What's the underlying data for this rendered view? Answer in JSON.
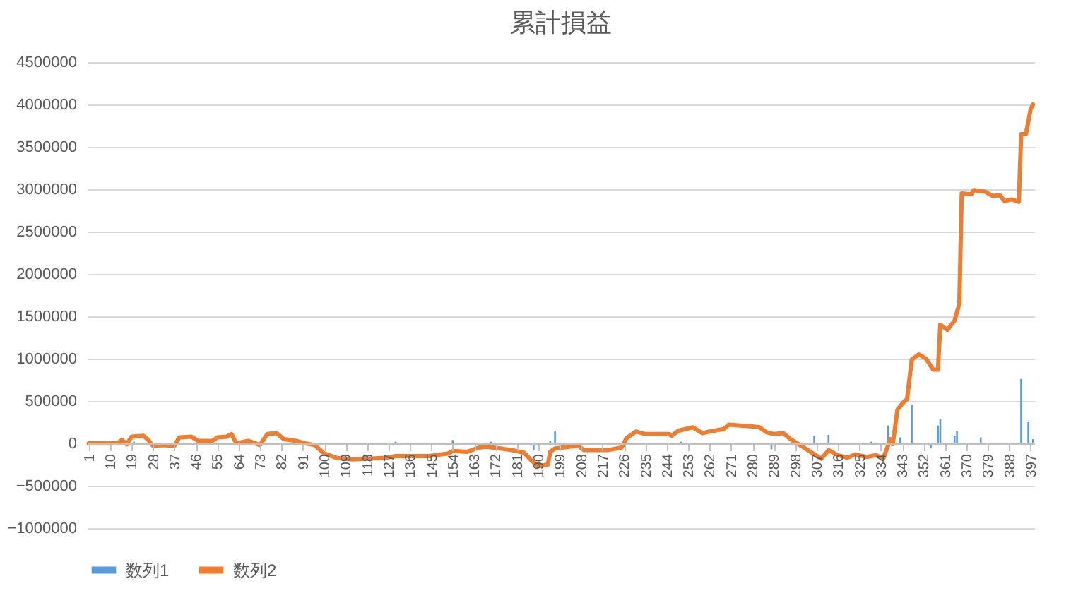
{
  "chart_data": {
    "type": "bar",
    "title": "累計損益",
    "xlim": [
      0.5,
      398.5
    ],
    "xticks": [
      1,
      10,
      19,
      28,
      37,
      46,
      55,
      64,
      73,
      82,
      91,
      100,
      109,
      118,
      127,
      136,
      145,
      154,
      163,
      172,
      181,
      190,
      199,
      208,
      217,
      226,
      235,
      244,
      253,
      262,
      271,
      280,
      289,
      298,
      307,
      316,
      325,
      334,
      343,
      352,
      361,
      370,
      379,
      388,
      397
    ],
    "ylim": [
      -1000000,
      4500000
    ],
    "yticks": [
      -1000000,
      -500000,
      0,
      500000,
      1000000,
      1500000,
      2000000,
      2500000,
      3000000,
      3500000,
      4000000,
      4500000
    ],
    "grid": "y",
    "legend": "bottom",
    "marker": "none",
    "series": [
      {
        "name": "数列1",
        "color": "#5b9bd5",
        "x": [
          20,
          45,
          70,
          110,
          130,
          154,
          170,
          188,
          195,
          197,
          230,
          250,
          288,
          306,
          312,
          330,
          337,
          342,
          347,
          355,
          358,
          359,
          365,
          366,
          376,
          393,
          396,
          398
        ],
        "values": [
          20000,
          null,
          20000,
          null,
          20000,
          40000,
          20000,
          -80000,
          30000,
          150000,
          null,
          20000,
          -70000,
          90000,
          100000,
          20000,
          210000,
          70000,
          450000,
          -60000,
          210000,
          290000,
          90000,
          150000,
          70000,
          760000,
          250000,
          50000
        ]
      },
      {
        "name": "数列2",
        "type": "line",
        "color": "#ed7d31",
        "x": [
          1,
          13,
          15,
          17,
          19,
          24,
          26,
          28,
          32,
          37,
          39,
          44,
          47,
          53,
          55,
          59,
          61,
          63,
          68,
          73,
          76,
          80,
          83,
          88,
          92,
          96,
          100,
          105,
          112,
          126,
          130,
          144,
          152,
          154,
          160,
          165,
          168,
          174,
          179,
          184,
          187,
          190,
          194,
          195,
          197,
          203,
          207,
          209,
          219,
          225,
          227,
          231,
          235,
          245,
          246,
          249,
          255,
          259,
          262,
          268,
          270,
          280,
          283,
          286,
          289,
          293,
          296,
          300,
          306,
          309,
          312,
          316,
          320,
          323,
          328,
          332,
          335,
          338,
          339,
          341,
          344,
          345,
          347,
          350,
          353,
          356,
          358,
          359,
          362,
          365,
          367,
          368,
          372,
          373,
          378,
          381,
          384,
          386,
          389,
          392,
          393,
          395,
          397,
          398
        ],
        "values": [
          0,
          0,
          40000,
          -10000,
          80000,
          90000,
          40000,
          -30000,
          -20000,
          -30000,
          70000,
          80000,
          30000,
          30000,
          70000,
          80000,
          110000,
          0,
          30000,
          -20000,
          110000,
          120000,
          50000,
          30000,
          0,
          -20000,
          -120000,
          -170000,
          -190000,
          -170000,
          -150000,
          -150000,
          -120000,
          -90000,
          -100000,
          -50000,
          -40000,
          -60000,
          -80000,
          -110000,
          -200000,
          -270000,
          -250000,
          -100000,
          -60000,
          -40000,
          -30000,
          -80000,
          -80000,
          -50000,
          60000,
          140000,
          110000,
          110000,
          90000,
          150000,
          190000,
          120000,
          140000,
          170000,
          220000,
          200000,
          190000,
          130000,
          110000,
          120000,
          50000,
          -20000,
          -130000,
          -180000,
          -80000,
          -140000,
          -170000,
          -130000,
          -160000,
          -140000,
          -180000,
          50000,
          -10000,
          400000,
          500000,
          520000,
          990000,
          1050000,
          1000000,
          870000,
          870000,
          1400000,
          1340000,
          1450000,
          1650000,
          2950000,
          2940000,
          2990000,
          2970000,
          2920000,
          2930000,
          2860000,
          2880000,
          2850000,
          3650000,
          3650000,
          3950000,
          4000000
        ]
      }
    ]
  }
}
